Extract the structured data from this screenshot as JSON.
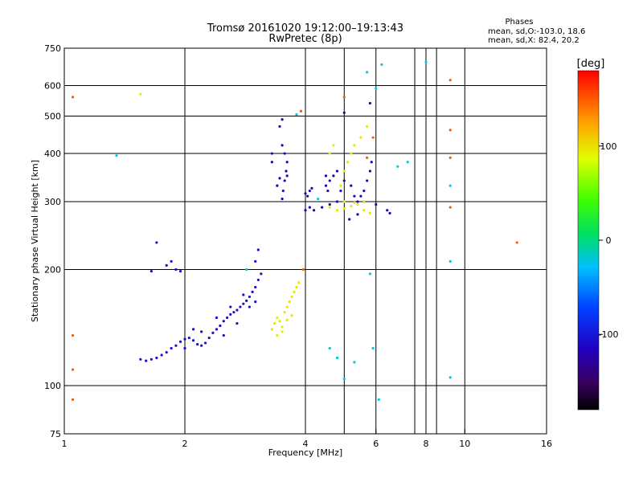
{
  "chart_data": {
    "type": "scatter",
    "title": "Tromsø 20161020 19:12:00–19:13:43",
    "subtitle": "RwPretec (8p)",
    "xlabel": "Frequency [MHz]",
    "ylabel": "Stationary phase Virtual Height [km]",
    "xscale": "log",
    "yscale": "log",
    "xlim": [
      1,
      16
    ],
    "ylim": [
      75,
      750
    ],
    "x_ticks": [
      1,
      2,
      4,
      6,
      8,
      10,
      16
    ],
    "y_ticks": [
      75,
      100,
      200,
      300,
      400,
      500,
      600,
      750
    ],
    "x_grid": [
      2,
      4,
      5,
      6,
      7.5,
      8,
      8.5,
      10
    ],
    "y_grid": [
      100,
      200,
      300,
      400,
      500,
      600
    ],
    "grid": true,
    "phase_stats": {
      "heading": "Phases",
      "line1": "mean, sd,O:-103.0, 18.6",
      "line2": "mean, sd,X:  82.4, 20.2"
    },
    "colorbar": {
      "label": "[deg]",
      "range": [
        -180,
        180
      ],
      "ticks": [
        "100",
        "0",
        "-100"
      ],
      "tick_values": [
        100,
        0,
        -100
      ]
    },
    "series": [
      {
        "points": [
          [
            1.55,
            117
          ],
          [
            1.6,
            116
          ],
          [
            1.65,
            117
          ],
          [
            1.7,
            118
          ],
          [
            1.75,
            120
          ],
          [
            1.8,
            122
          ],
          [
            1.85,
            125
          ],
          [
            1.9,
            127
          ],
          [
            1.95,
            130
          ],
          [
            2.0,
            132
          ],
          [
            2.05,
            133
          ],
          [
            2.1,
            131
          ],
          [
            2.15,
            128
          ],
          [
            2.2,
            127
          ],
          [
            2.25,
            129
          ],
          [
            2.3,
            133
          ],
          [
            2.35,
            137
          ],
          [
            2.4,
            140
          ],
          [
            2.45,
            143
          ],
          [
            2.5,
            147
          ],
          [
            2.55,
            150
          ],
          [
            2.6,
            153
          ],
          [
            2.65,
            155
          ],
          [
            2.7,
            157
          ],
          [
            2.75,
            160
          ],
          [
            2.8,
            163
          ],
          [
            2.85,
            166
          ],
          [
            2.9,
            170
          ],
          [
            2.95,
            175
          ],
          [
            3.0,
            180
          ],
          [
            3.05,
            188
          ],
          [
            3.1,
            195
          ],
          [
            3.0,
            210
          ],
          [
            3.05,
            225
          ],
          [
            1.8,
            205
          ],
          [
            1.85,
            210
          ],
          [
            1.9,
            200
          ],
          [
            1.95,
            198
          ],
          [
            1.7,
            235
          ],
          [
            1.65,
            198
          ],
          [
            2.0,
            125
          ],
          [
            2.1,
            140
          ],
          [
            2.2,
            138
          ],
          [
            2.4,
            150
          ],
          [
            2.6,
            160
          ],
          [
            2.8,
            172
          ],
          [
            3.0,
            165
          ],
          [
            2.9,
            160
          ],
          [
            2.7,
            145
          ],
          [
            2.5,
            135
          ]
        ],
        "phase": -105
      },
      {
        "points": [
          [
            3.5,
            305
          ],
          [
            3.52,
            320
          ],
          [
            3.55,
            340
          ],
          [
            3.58,
            360
          ],
          [
            3.6,
            380
          ],
          [
            3.55,
            400
          ],
          [
            3.5,
            420
          ],
          [
            3.45,
            470
          ],
          [
            3.5,
            490
          ],
          [
            3.6,
            350
          ],
          [
            3.4,
            330
          ],
          [
            3.45,
            345
          ],
          [
            3.3,
            400
          ],
          [
            3.3,
            380
          ],
          [
            4.0,
            315
          ],
          [
            4.05,
            310
          ],
          [
            4.1,
            320
          ],
          [
            4.15,
            325
          ],
          [
            4.0,
            285
          ],
          [
            4.1,
            290
          ],
          [
            4.2,
            285
          ],
          [
            4.4,
            290
          ],
          [
            4.6,
            295
          ],
          [
            4.8,
            300
          ],
          [
            4.5,
            330
          ],
          [
            4.55,
            320
          ],
          [
            4.6,
            340
          ],
          [
            4.7,
            350
          ],
          [
            4.8,
            360
          ],
          [
            5.0,
            340
          ],
          [
            5.2,
            330
          ],
          [
            5.4,
            300
          ],
          [
            5.5,
            310
          ],
          [
            5.6,
            320
          ],
          [
            5.7,
            340
          ],
          [
            5.8,
            360
          ],
          [
            5.85,
            380
          ],
          [
            5.6,
            300
          ],
          [
            6.0,
            295
          ],
          [
            6.4,
            285
          ],
          [
            6.5,
            280
          ],
          [
            5.0,
            510
          ],
          [
            5.8,
            540
          ],
          [
            4.5,
            350
          ],
          [
            4.9,
            320
          ],
          [
            5.3,
            310
          ],
          [
            5.15,
            270
          ],
          [
            5.4,
            278
          ]
        ],
        "phase": -120
      },
      {
        "points": [
          [
            3.3,
            140
          ],
          [
            3.35,
            145
          ],
          [
            3.4,
            150
          ],
          [
            3.45,
            147
          ],
          [
            3.5,
            142
          ],
          [
            3.55,
            155
          ],
          [
            3.6,
            160
          ],
          [
            3.65,
            165
          ],
          [
            3.7,
            170
          ],
          [
            3.75,
            175
          ],
          [
            3.4,
            135
          ],
          [
            3.5,
            138
          ],
          [
            3.6,
            148
          ],
          [
            3.7,
            152
          ],
          [
            3.8,
            180
          ],
          [
            3.85,
            185
          ],
          [
            4.6,
            290
          ],
          [
            4.8,
            285
          ],
          [
            5.0,
            288
          ],
          [
            5.2,
            292
          ],
          [
            5.4,
            295
          ],
          [
            5.6,
            285
          ],
          [
            5.8,
            280
          ],
          [
            4.9,
            330
          ],
          [
            5.0,
            360
          ],
          [
            5.1,
            380
          ],
          [
            5.2,
            400
          ],
          [
            5.3,
            420
          ],
          [
            5.5,
            440
          ],
          [
            5.7,
            470
          ],
          [
            4.6,
            400
          ],
          [
            4.7,
            420
          ],
          [
            5.0,
            300
          ],
          [
            5.3,
            298
          ],
          [
            5.6,
            300
          ],
          [
            1.55,
            570
          ]
        ],
        "phase": 95
      },
      {
        "points": [
          [
            1.05,
            560
          ],
          [
            1.05,
            110
          ],
          [
            1.05,
            92
          ],
          [
            1.05,
            135
          ],
          [
            9.2,
            290
          ],
          [
            9.2,
            390
          ],
          [
            9.2,
            620
          ],
          [
            9.2,
            460
          ],
          [
            13.5,
            235
          ],
          [
            3.9,
            515
          ],
          [
            3.95,
            200
          ],
          [
            5.0,
            560
          ],
          [
            5.7,
            390
          ],
          [
            5.9,
            440
          ]
        ],
        "phase": 150
      },
      {
        "points": [
          [
            1.35,
            395
          ],
          [
            9.2,
            210
          ],
          [
            9.2,
            105
          ],
          [
            9.2,
            330
          ],
          [
            6.2,
            680
          ],
          [
            5.7,
            650
          ],
          [
            7.2,
            380
          ],
          [
            8.0,
            690
          ],
          [
            2.85,
            200
          ],
          [
            3.8,
            505
          ],
          [
            6.0,
            590
          ],
          [
            6.8,
            370
          ],
          [
            4.6,
            125
          ],
          [
            5.9,
            125
          ],
          [
            5.8,
            195
          ],
          [
            6.1,
            92
          ],
          [
            5.0,
            104
          ],
          [
            4.8,
            118
          ],
          [
            5.3,
            115
          ],
          [
            4.3,
            305
          ]
        ],
        "phase": -20
      }
    ]
  }
}
